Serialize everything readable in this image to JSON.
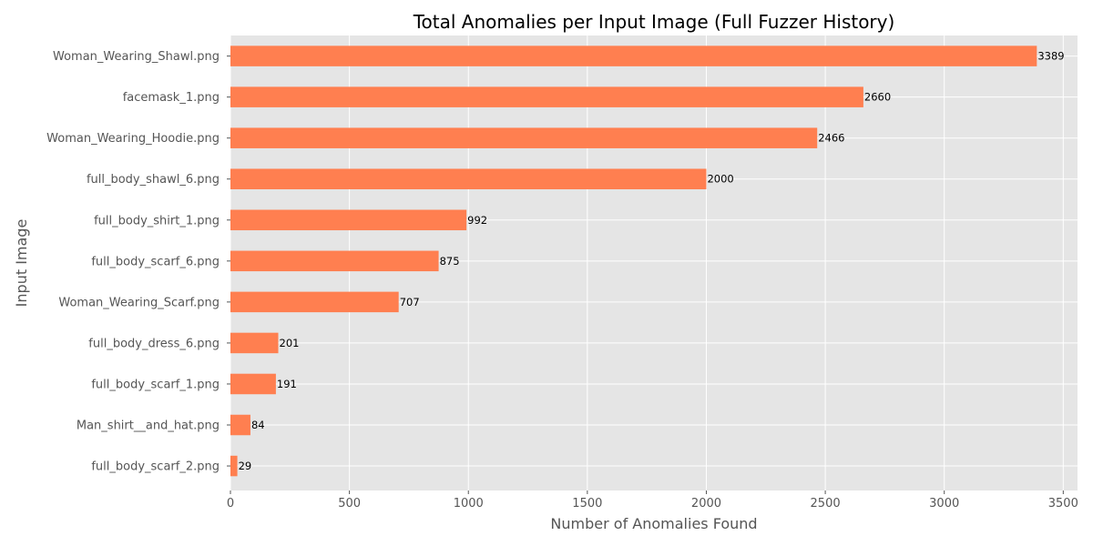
{
  "chart_data": {
    "type": "bar",
    "orientation": "horizontal",
    "title": "Total Anomalies per Input Image (Full Fuzzer History)",
    "xlabel": "Number of Anomalies Found",
    "ylabel": "Input Image",
    "xlim": [
      0,
      3560
    ],
    "xticks": [
      0,
      500,
      1000,
      1500,
      2000,
      2500,
      3000,
      3500
    ],
    "grid": true,
    "bar_color": "#ff7f50",
    "background_color": "#e5e5e5",
    "categories": [
      "Woman_Wearing_Shawl.png",
      "facemask_1.png",
      "Woman_Wearing_Hoodie.png",
      "full_body_shawl_6.png",
      "full_body_shirt_1.png",
      "full_body_scarf_6.png",
      "Woman_Wearing_Scarf.png",
      "full_body_dress_6.png",
      "full_body_scarf_1.png",
      "Man_shirt__and_hat.png",
      "full_body_scarf_2.png"
    ],
    "values": [
      3389,
      2660,
      2466,
      2000,
      992,
      875,
      707,
      201,
      191,
      84,
      29
    ]
  }
}
